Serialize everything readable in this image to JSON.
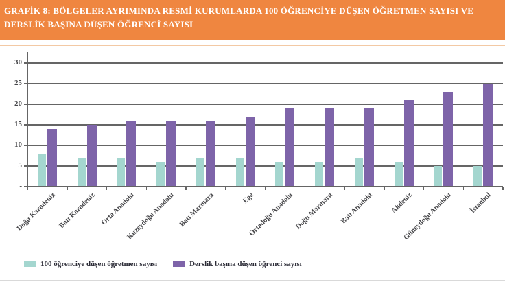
{
  "header": {
    "title_line1": "GRAFİK 8: BÖLGELER AYRIMINDA RESMİ KURUMLARDA 100 ÖĞRENCİYE DÜŞEN ÖĞRETMEN SAYISI VE",
    "title_line2": "DERSLİK BAŞINA DÜŞEN ÖĞRENCİ SAYISI",
    "bg_color": "#ef8640",
    "text_color": "#ffffff"
  },
  "chart_data": {
    "type": "bar",
    "title": "GRAFİK 8: BÖLGELER AYRIMINDA RESMİ KURUMLARDA 100 ÖĞRENCİYE DÜŞEN ÖĞRETMEN SAYISI VE DERSLİK BAŞINA DÜŞEN ÖĞRENCİ SAYISI",
    "categories": [
      "Doğu Karadeniz",
      "Batı Karadeniz",
      "Orta Anadolu",
      "Kuzeydoğu Anadolu",
      "Batı Marmara",
      "Ege",
      "Ortadoğu Anadolu",
      "Doğu Marmara",
      "Batı Anadolu",
      "Akdeniz",
      "Güneydoğu Anadolu",
      "İstanbul"
    ],
    "series": [
      {
        "name": "100 öğrenciye düşen öğretmen sayısı",
        "color": "#a4d6cf",
        "values": [
          8,
          7,
          7,
          6,
          7,
          7,
          6,
          6,
          7,
          6,
          5,
          5
        ]
      },
      {
        "name": "Derslik başına düşen öğrenci sayısı",
        "color": "#7e64a9",
        "values": [
          14,
          15,
          16,
          16,
          16,
          17,
          19,
          19,
          19,
          21,
          23,
          25
        ]
      }
    ],
    "xlabel": "",
    "ylabel": "",
    "ylim": [
      0,
      30
    ],
    "ytick_step": 5,
    "zero_tick_label": "-",
    "grid": true,
    "legend_position": "bottom"
  },
  "colors": {
    "gridline": "#656565",
    "axis_text": "#47474a",
    "legend_text": "#2b2b36",
    "header_separator": "#f3c9a4",
    "bottom_rule": "#d9d9d9"
  }
}
